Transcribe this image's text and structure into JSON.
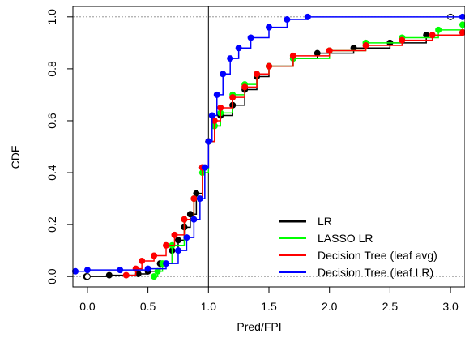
{
  "chart_data": {
    "type": "line",
    "xlabel": "Pred/FPI",
    "ylabel": "CDF",
    "xlim": [
      -0.12,
      3.12
    ],
    "ylim": [
      -0.04,
      1.04
    ],
    "x_ticks": [
      0.0,
      0.5,
      1.0,
      1.5,
      2.0,
      2.5,
      3.0
    ],
    "x_tick_labels": [
      "0.0",
      "0.5",
      "1.0",
      "1.5",
      "2.0",
      "2.5",
      "3.0"
    ],
    "y_ticks": [
      0.0,
      0.2,
      0.4,
      0.6,
      0.8,
      1.0
    ],
    "y_tick_labels": [
      "0.0",
      "0.2",
      "0.4",
      "0.6",
      "0.8",
      "1.0"
    ],
    "reference_lines": {
      "horizontal": [
        0,
        1
      ],
      "vertical": [
        1
      ]
    },
    "legend_position": "bottom-right",
    "series": [
      {
        "name": "LR",
        "color": "#000000",
        "points": [
          [
            -0.01,
            0.0
          ],
          [
            0.18,
            0.005
          ],
          [
            0.42,
            0.01
          ],
          [
            0.5,
            0.02
          ],
          [
            0.6,
            0.05
          ],
          [
            0.7,
            0.1
          ],
          [
            0.75,
            0.14
          ],
          [
            0.8,
            0.19
          ],
          [
            0.85,
            0.24
          ],
          [
            0.9,
            0.32
          ],
          [
            0.95,
            0.42
          ],
          [
            1.0,
            0.52
          ],
          [
            1.05,
            0.58
          ],
          [
            1.1,
            0.62
          ],
          [
            1.2,
            0.66
          ],
          [
            1.3,
            0.72
          ],
          [
            1.4,
            0.77
          ],
          [
            1.5,
            0.81
          ],
          [
            1.7,
            0.84
          ],
          [
            1.9,
            0.86
          ],
          [
            2.2,
            0.88
          ],
          [
            2.5,
            0.9
          ],
          [
            2.8,
            0.93
          ],
          [
            3.1,
            0.94
          ]
        ],
        "open_markers": [
          [
            0.0,
            0.0
          ],
          [
            3.0,
            1.0
          ]
        ]
      },
      {
        "name": "LASSO LR",
        "color": "#00ff00",
        "points": [
          [
            0.55,
            0.0
          ],
          [
            0.58,
            0.02
          ],
          [
            0.62,
            0.05
          ],
          [
            0.7,
            0.12
          ],
          [
            0.8,
            0.22
          ],
          [
            0.88,
            0.3
          ],
          [
            0.95,
            0.4
          ],
          [
            1.0,
            0.52
          ],
          [
            1.05,
            0.58
          ],
          [
            1.1,
            0.63
          ],
          [
            1.2,
            0.7
          ],
          [
            1.3,
            0.74
          ],
          [
            1.4,
            0.78
          ],
          [
            1.5,
            0.81
          ],
          [
            1.7,
            0.84
          ],
          [
            2.0,
            0.87
          ],
          [
            2.3,
            0.9
          ],
          [
            2.6,
            0.92
          ],
          [
            2.9,
            0.95
          ],
          [
            3.1,
            0.97
          ]
        ]
      },
      {
        "name": "Decision Tree (leaf avg)",
        "color": "#ff0000",
        "points": [
          [
            0.32,
            0.005
          ],
          [
            0.4,
            0.03
          ],
          [
            0.45,
            0.06
          ],
          [
            0.55,
            0.08
          ],
          [
            0.65,
            0.12
          ],
          [
            0.72,
            0.16
          ],
          [
            0.8,
            0.22
          ],
          [
            0.88,
            0.3
          ],
          [
            0.95,
            0.42
          ],
          [
            1.0,
            0.52
          ],
          [
            1.05,
            0.6
          ],
          [
            1.1,
            0.65
          ],
          [
            1.2,
            0.69
          ],
          [
            1.3,
            0.73
          ],
          [
            1.4,
            0.78
          ],
          [
            1.5,
            0.81
          ],
          [
            1.7,
            0.85
          ],
          [
            2.0,
            0.87
          ],
          [
            2.3,
            0.89
          ],
          [
            2.6,
            0.91
          ],
          [
            2.85,
            0.93
          ],
          [
            3.1,
            0.94
          ]
        ]
      },
      {
        "name": "Decision Tree (leaf LR)",
        "color": "#0000ff",
        "points": [
          [
            -0.1,
            0.02
          ],
          [
            0.0,
            0.025
          ],
          [
            0.27,
            0.025
          ],
          [
            0.5,
            0.03
          ],
          [
            0.65,
            0.05
          ],
          [
            0.75,
            0.1
          ],
          [
            0.82,
            0.15
          ],
          [
            0.88,
            0.22
          ],
          [
            0.93,
            0.3
          ],
          [
            0.97,
            0.42
          ],
          [
            1.0,
            0.52
          ],
          [
            1.03,
            0.62
          ],
          [
            1.07,
            0.7
          ],
          [
            1.12,
            0.78
          ],
          [
            1.18,
            0.84
          ],
          [
            1.25,
            0.88
          ],
          [
            1.35,
            0.92
          ],
          [
            1.5,
            0.96
          ],
          [
            1.65,
            0.99
          ],
          [
            1.82,
            1.0
          ],
          [
            3.1,
            1.0
          ]
        ]
      }
    ]
  }
}
